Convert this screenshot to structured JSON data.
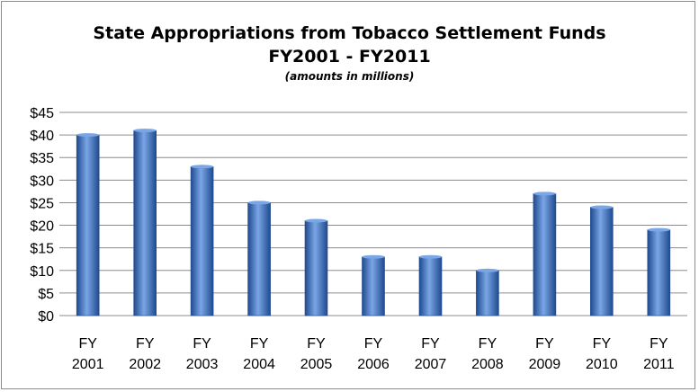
{
  "chart_data": {
    "type": "bar",
    "title": "State Appropriations from Tobacco Settlement Funds",
    "subtitle_line": "FY2001 - FY2011",
    "note": "(amounts in millions)",
    "categories": [
      [
        "FY",
        "2001"
      ],
      [
        "FY",
        "2002"
      ],
      [
        "FY",
        "2003"
      ],
      [
        "FY",
        "2004"
      ],
      [
        "FY",
        "2005"
      ],
      [
        "FY",
        "2006"
      ],
      [
        "FY",
        "2007"
      ],
      [
        "FY",
        "2008"
      ],
      [
        "FY",
        "2009"
      ],
      [
        "FY",
        "2010"
      ],
      [
        "FY",
        "2011"
      ]
    ],
    "values": [
      40,
      41,
      33,
      25,
      21,
      13,
      13,
      10,
      27,
      24,
      19
    ],
    "ylim": [
      0,
      45
    ],
    "ytick_step": 5,
    "ytick_labels": [
      "$0",
      "$5",
      "$10",
      "$15",
      "$20",
      "$25",
      "$30",
      "$35",
      "$40",
      "$45"
    ],
    "xlabel": "",
    "ylabel": "",
    "grid": true,
    "legend": "none",
    "bar_color": "#3a6fc4",
    "bar_dark": "#1f4a8f",
    "bar_light": "#7aa6e6",
    "grid_color": "#8c8c8c"
  }
}
